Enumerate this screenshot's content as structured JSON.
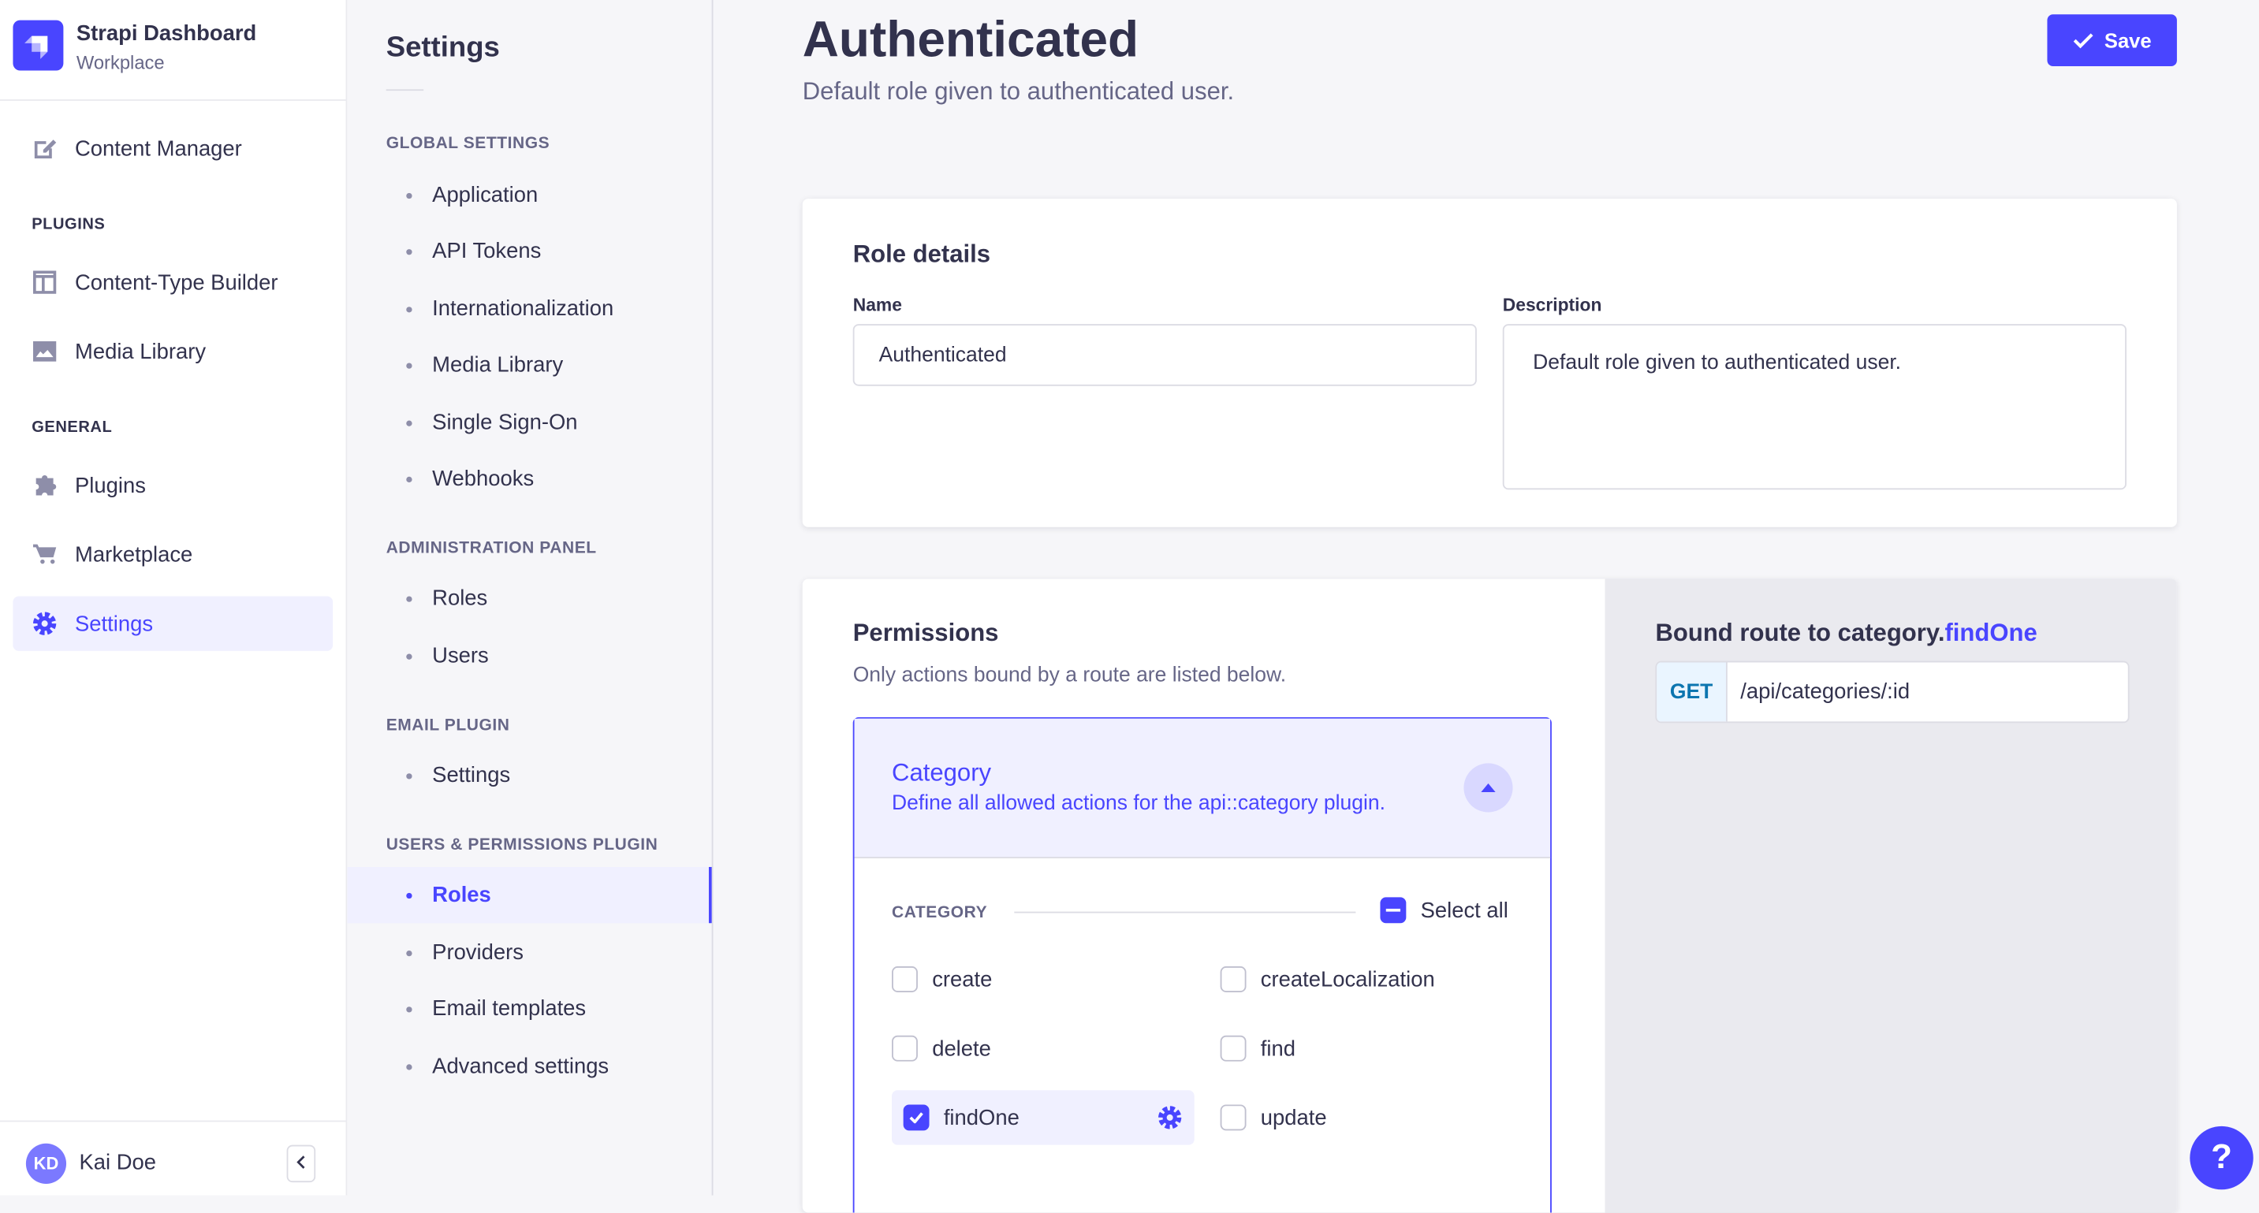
{
  "brand": {
    "title": "Strapi Dashboard",
    "subtitle": "Workplace"
  },
  "nav": {
    "content_manager": "Content Manager",
    "plugins_section": "PLUGINS",
    "content_type_builder": "Content-Type Builder",
    "media_library": "Media Library",
    "general_section": "GENERAL",
    "plugins": "Plugins",
    "marketplace": "Marketplace",
    "settings": "Settings"
  },
  "user": {
    "initials": "KD",
    "name": "Kai Doe"
  },
  "settings_nav": {
    "title": "Settings",
    "sections": [
      {
        "label": "GLOBAL SETTINGS",
        "items": [
          "Application",
          "API Tokens",
          "Internationalization",
          "Media Library",
          "Single Sign-On",
          "Webhooks"
        ]
      },
      {
        "label": "ADMINISTRATION PANEL",
        "items": [
          "Roles",
          "Users"
        ]
      },
      {
        "label": "EMAIL PLUGIN",
        "items": [
          "Settings"
        ]
      },
      {
        "label": "USERS & PERMISSIONS PLUGIN",
        "items": [
          "Roles",
          "Providers",
          "Email templates",
          "Advanced settings"
        ]
      }
    ],
    "active": "Roles"
  },
  "header": {
    "title": "Authenticated",
    "subtitle": "Default role given to authenticated user.",
    "save_label": "Save"
  },
  "role_details": {
    "title": "Role details",
    "name_label": "Name",
    "name_value": "Authenticated",
    "description_label": "Description",
    "description_value": "Default role given to authenticated user."
  },
  "permissions": {
    "title": "Permissions",
    "subtitle": "Only actions bound by a route are listed below.",
    "category": {
      "name": "Category",
      "description": "Define all allowed actions for the api::category plugin.",
      "section_label": "CATEGORY",
      "select_all": "Select all"
    },
    "actions": [
      {
        "label": "create",
        "checked": false
      },
      {
        "label": "createLocalization",
        "checked": false
      },
      {
        "label": "delete",
        "checked": false
      },
      {
        "label": "find",
        "checked": false
      },
      {
        "label": "findOne",
        "checked": true
      },
      {
        "label": "update",
        "checked": false
      }
    ]
  },
  "bound_route": {
    "prefix": "Bound route to category.",
    "action": "findOne",
    "method": "GET",
    "path": "/api/categories/:id"
  },
  "help_label": "?",
  "colors": {
    "primary": "#4945ff",
    "get": "#0c75af"
  }
}
